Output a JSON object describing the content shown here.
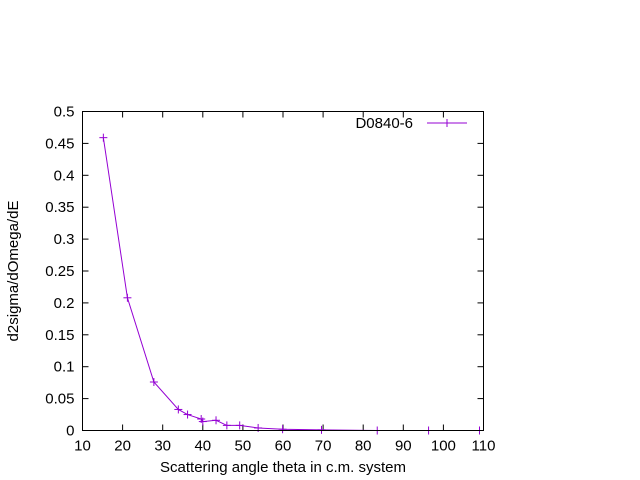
{
  "chart_data": {
    "type": "line",
    "title": "",
    "xlabel": "Scattering angle theta in c.m. system",
    "ylabel": "d2sigma/dOmega/dE",
    "xlim": [
      10,
      110
    ],
    "ylim": [
      0,
      0.5
    ],
    "xticks": [
      10,
      20,
      30,
      40,
      50,
      60,
      70,
      80,
      90,
      100,
      110
    ],
    "yticks": [
      0,
      0.05,
      0.1,
      0.15,
      0.2,
      0.25,
      0.3,
      0.35,
      0.4,
      0.45,
      0.5
    ],
    "xtick_labels": [
      "10",
      "20",
      "30",
      "40",
      "50",
      "60",
      "70",
      "80",
      "90",
      "100",
      "110"
    ],
    "ytick_labels": [
      "0",
      "0.05",
      "0.1",
      "0.15",
      "0.2",
      "0.25",
      "0.3",
      "0.35",
      "0.4",
      "0.45",
      "0.5"
    ],
    "grid": false,
    "legend_position": "top-right",
    "series": [
      {
        "name": "D0840-6",
        "color": "#9400d3",
        "marker": "plus",
        "x": [
          15.2,
          21.2,
          27.8,
          33.9,
          36.2,
          39.6,
          40.0,
          43.3,
          46.0,
          49.2,
          53.8,
          59.9,
          69.6,
          83.5,
          96.3,
          109.0
        ],
        "y": [
          0.459,
          0.208,
          0.076,
          0.033,
          0.025,
          0.018,
          0.014,
          0.016,
          0.008,
          0.008,
          0.004,
          0.002,
          0.001,
          0.0,
          0.0,
          0.0
        ]
      }
    ]
  }
}
